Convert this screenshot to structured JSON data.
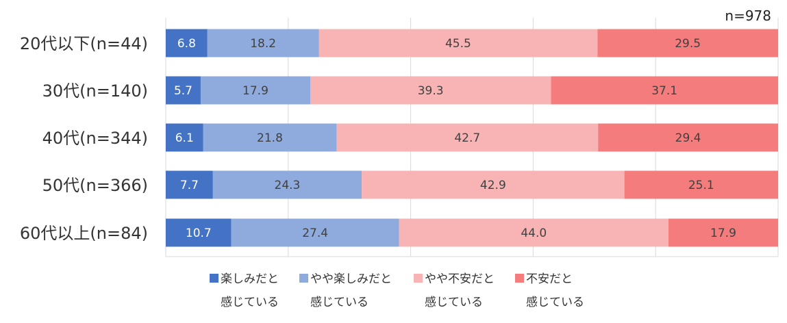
{
  "chart_data": {
    "type": "bar",
    "orientation": "horizontal",
    "stacked": true,
    "note": "n=978",
    "categories": [
      "20代以下(n=44)",
      "30代(n=140)",
      "40代(n=344)",
      "50代(n=366)",
      "60代以上(n=84)"
    ],
    "series": [
      {
        "name": "楽しみだと感じている",
        "legend_lines": [
          "楽しみだと",
          "感じている"
        ],
        "color": "#4472C4",
        "label_color": "#ffffff",
        "values": [
          6.8,
          5.7,
          6.1,
          7.7,
          10.7
        ]
      },
      {
        "name": "やや楽しみだと感じている",
        "legend_lines": [
          "やや楽しみだと",
          "感じている"
        ],
        "color": "#8FAADC",
        "label_color": "#404040",
        "values": [
          18.2,
          17.9,
          21.8,
          24.3,
          27.4
        ]
      },
      {
        "name": "やや不安だと感じている",
        "legend_lines": [
          "やや不安だと",
          "感じている"
        ],
        "color": "#F8B4B4",
        "label_color": "#404040",
        "values": [
          45.5,
          39.3,
          42.7,
          42.9,
          44.0
        ]
      },
      {
        "name": "不安だと感じている",
        "legend_lines": [
          "不安だと",
          "感じている"
        ],
        "color": "#F47C7C",
        "label_color": "#404040",
        "values": [
          29.5,
          37.1,
          29.4,
          25.1,
          17.9
        ]
      }
    ],
    "value_labels": [
      [
        "6.8",
        "5.7",
        "6.1",
        "7.7",
        "10.7"
      ],
      [
        "18.2",
        "17.9",
        "21.8",
        "24.3",
        "27.4"
      ],
      [
        "45.5",
        "39.3",
        "42.7",
        "42.9",
        "44.0"
      ],
      [
        "29.5",
        "37.1",
        "29.4",
        "25.1",
        "17.9"
      ]
    ],
    "xlim": [
      0,
      100
    ],
    "grid": true,
    "legend_position": "bottom"
  }
}
